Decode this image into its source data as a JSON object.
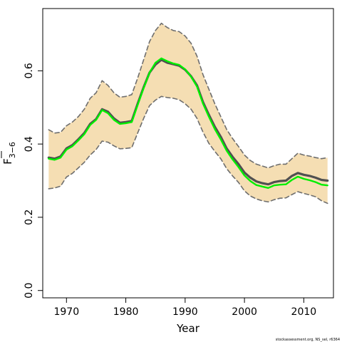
{
  "chart_data": {
    "type": "line",
    "title": "",
    "xlabel": "Year",
    "ylabel": "F 3-6",
    "ylabel_main": "F",
    "ylabel_sub": "3−6",
    "xlim": [
      1966,
      2015
    ],
    "ylim": [
      -0.02,
      0.77
    ],
    "x_ticks": [
      1970,
      1980,
      1990,
      2000,
      2010
    ],
    "x_tick_labels": [
      "1970",
      "1980",
      "1990",
      "2000",
      "2010"
    ],
    "y_ticks": [
      0.0,
      0.2,
      0.4,
      0.6
    ],
    "y_tick_labels": [
      "0.0",
      "0.2",
      "0.4",
      "0.6"
    ],
    "grid": false,
    "legend": "none",
    "colors": {
      "band_fill": "#f5deb3",
      "band_border": "#6e6e6e",
      "estimate_line": "#505050",
      "highlight_line": "#00ee00"
    },
    "x": [
      1967,
      1968,
      1969,
      1970,
      1971,
      1972,
      1973,
      1974,
      1975,
      1976,
      1977,
      1978,
      1979,
      1980,
      1981,
      1982,
      1983,
      1984,
      1985,
      1986,
      1987,
      1988,
      1989,
      1990,
      1991,
      1992,
      1993,
      1994,
      1995,
      1996,
      1997,
      1998,
      1999,
      2000,
      2001,
      2002,
      2003,
      2004,
      2005,
      2006,
      2007,
      2008,
      2009,
      2010,
      2011,
      2012,
      2013,
      2014
    ],
    "series": [
      {
        "role": "estimate",
        "values": [
          0.363,
          0.36,
          0.366,
          0.388,
          0.397,
          0.413,
          0.43,
          0.455,
          0.468,
          0.495,
          0.488,
          0.47,
          0.458,
          0.46,
          0.463,
          0.51,
          0.555,
          0.595,
          0.617,
          0.63,
          0.622,
          0.618,
          0.614,
          0.603,
          0.585,
          0.56,
          0.515,
          0.48,
          0.447,
          0.42,
          0.388,
          0.365,
          0.345,
          0.322,
          0.308,
          0.298,
          0.293,
          0.29,
          0.296,
          0.299,
          0.3,
          0.313,
          0.321,
          0.316,
          0.313,
          0.308,
          0.302,
          0.3
        ]
      },
      {
        "role": "highlight",
        "values": [
          0.36,
          0.357,
          0.363,
          0.385,
          0.394,
          0.41,
          0.427,
          0.452,
          0.466,
          0.493,
          0.484,
          0.466,
          0.455,
          0.457,
          0.46,
          0.507,
          0.553,
          0.595,
          0.622,
          0.634,
          0.626,
          0.62,
          0.616,
          0.604,
          0.584,
          0.557,
          0.511,
          0.475,
          0.441,
          0.413,
          0.382,
          0.358,
          0.337,
          0.314,
          0.299,
          0.288,
          0.284,
          0.28,
          0.287,
          0.289,
          0.29,
          0.302,
          0.311,
          0.305,
          0.301,
          0.296,
          0.289,
          0.287
        ]
      },
      {
        "role": "upper",
        "values": [
          0.439,
          0.43,
          0.432,
          0.45,
          0.46,
          0.475,
          0.495,
          0.525,
          0.54,
          0.573,
          0.56,
          0.54,
          0.528,
          0.53,
          0.535,
          0.58,
          0.63,
          0.68,
          0.71,
          0.73,
          0.718,
          0.71,
          0.707,
          0.695,
          0.675,
          0.64,
          0.59,
          0.55,
          0.51,
          0.475,
          0.44,
          0.415,
          0.393,
          0.37,
          0.355,
          0.345,
          0.34,
          0.335,
          0.341,
          0.345,
          0.345,
          0.36,
          0.375,
          0.37,
          0.367,
          0.363,
          0.36,
          0.363
        ]
      },
      {
        "role": "lower",
        "values": [
          0.278,
          0.28,
          0.285,
          0.31,
          0.32,
          0.335,
          0.35,
          0.37,
          0.385,
          0.408,
          0.405,
          0.395,
          0.387,
          0.388,
          0.39,
          0.43,
          0.47,
          0.505,
          0.52,
          0.53,
          0.527,
          0.525,
          0.521,
          0.51,
          0.495,
          0.47,
          0.433,
          0.402,
          0.38,
          0.36,
          0.333,
          0.313,
          0.295,
          0.272,
          0.258,
          0.25,
          0.245,
          0.242,
          0.248,
          0.252,
          0.253,
          0.262,
          0.27,
          0.265,
          0.261,
          0.256,
          0.245,
          0.238
        ]
      }
    ]
  },
  "footer": {
    "credit": "stockassessment.org, NS_sel, r6364"
  }
}
